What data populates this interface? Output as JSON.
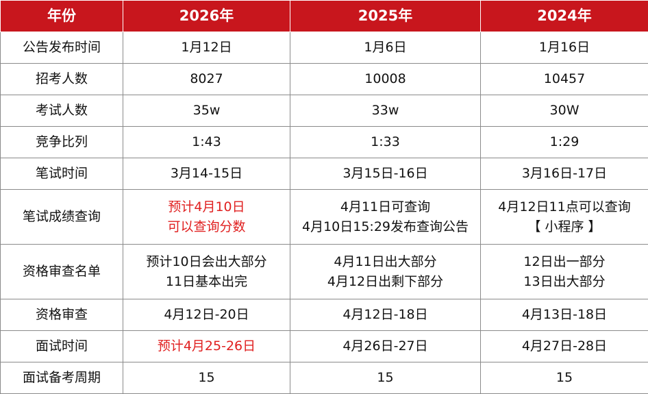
{
  "header": {
    "col0": "年份",
    "col1": "2026年",
    "col2": "2025年",
    "col3": "2024年"
  },
  "rows": [
    {
      "label": "公告发布时间",
      "c1": [
        "1月12日"
      ],
      "c2": [
        "1月6日"
      ],
      "c3": [
        "1月16日"
      ]
    },
    {
      "label": "招考人数",
      "c1": [
        "8027"
      ],
      "c2": [
        "10008"
      ],
      "c3": [
        "10457"
      ]
    },
    {
      "label": "考试人数",
      "c1": [
        "35w"
      ],
      "c2": [
        "33w"
      ],
      "c3": [
        "30W"
      ]
    },
    {
      "label": "竞争比列",
      "c1": [
        "1:43"
      ],
      "c2": [
        "1:33"
      ],
      "c3": [
        "1:29"
      ]
    },
    {
      "label": "笔试时间",
      "c1": [
        "3月14-15日"
      ],
      "c2": [
        "3月15日-16日"
      ],
      "c3": [
        "3月16日-17日"
      ]
    },
    {
      "label": "笔试成绩查询",
      "c1": [
        "预计4月10日",
        "可以查询分数"
      ],
      "c2": [
        "4月11日可查询",
        "4月10日15:29发布查询公告"
      ],
      "c3": [
        "4月12日11点可以查询",
        "【 小程序 】"
      ]
    },
    {
      "label": "资格审查名单",
      "c1": [
        "预计10日会出大部分",
        "11日基本出完"
      ],
      "c2": [
        "4月11日出大部分",
        "4月12日出剩下部分"
      ],
      "c3": [
        "12日出一部分",
        "13日出大部分"
      ]
    },
    {
      "label": "资格审查",
      "c1": [
        "4月12日-20日"
      ],
      "c2": [
        "4月12日-18日"
      ],
      "c3": [
        "4月13日-18日"
      ]
    },
    {
      "label": "面试时间",
      "c1": [
        "预计4月25-26日"
      ],
      "c2": [
        "4月26日-27日"
      ],
      "c3": [
        "4月27日-28日"
      ]
    },
    {
      "label": "面试备考周期",
      "c1": [
        "15"
      ],
      "c2": [
        "15"
      ],
      "c3": [
        "15"
      ]
    }
  ],
  "colors": {
    "header_bg": "#c8161d",
    "header_text": "#ffffff",
    "highlight": "#e02020"
  }
}
